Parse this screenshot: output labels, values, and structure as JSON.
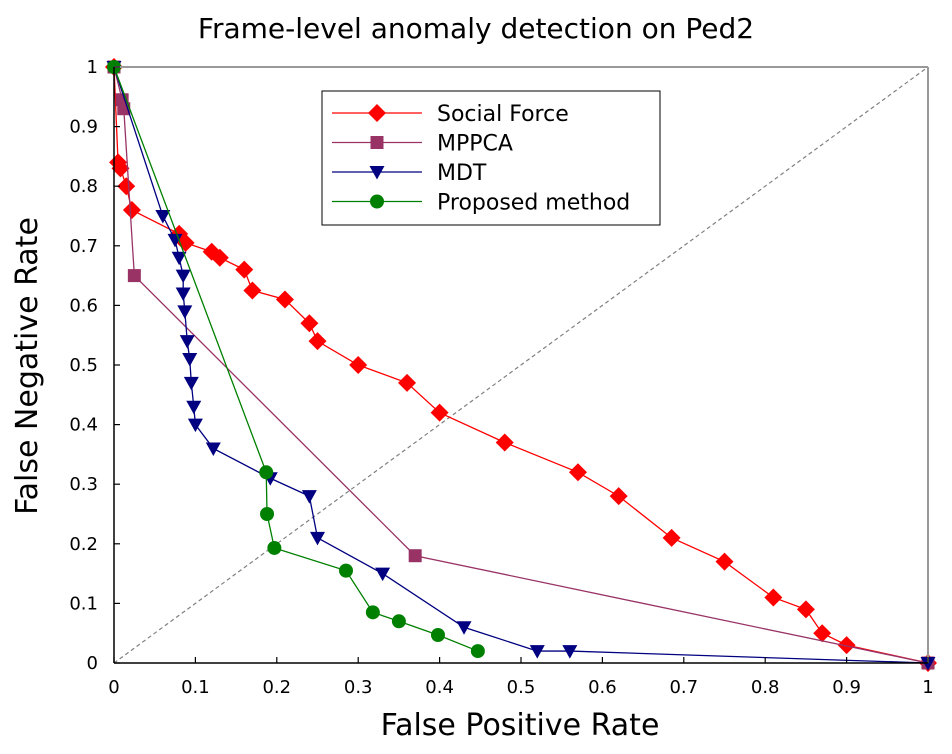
{
  "chart_data": {
    "type": "line",
    "title": "Frame-level anomaly detection on Ped2",
    "xlabel": "False Positive Rate",
    "ylabel": "False Negative Rate",
    "xlim": [
      0,
      1
    ],
    "ylim": [
      0,
      1
    ],
    "xticks": [
      "0",
      "0.1",
      "0.2",
      "0.3",
      "0.4",
      "0.5",
      "0.6",
      "0.7",
      "0.8",
      "0.9",
      "1"
    ],
    "yticks": [
      "0",
      "0.1",
      "0.2",
      "0.3",
      "0.4",
      "0.5",
      "0.6",
      "0.7",
      "0.8",
      "0.9",
      "1"
    ],
    "grid": false,
    "legend_position": "top-center",
    "series": [
      {
        "name": "Social Force",
        "color": "#ff0000",
        "marker": "diamond",
        "x": [
          0,
          0.005,
          0.008,
          0.015,
          0.022,
          0.08,
          0.088,
          0.12,
          0.13,
          0.16,
          0.17,
          0.21,
          0.24,
          0.25,
          0.3,
          0.36,
          0.4,
          0.48,
          0.57,
          0.62,
          0.685,
          0.75,
          0.81,
          0.85,
          0.87,
          0.9,
          1.0
        ],
        "y": [
          1.0,
          0.84,
          0.83,
          0.8,
          0.76,
          0.72,
          0.705,
          0.69,
          0.68,
          0.66,
          0.625,
          0.61,
          0.57,
          0.54,
          0.5,
          0.47,
          0.42,
          0.37,
          0.32,
          0.28,
          0.21,
          0.17,
          0.11,
          0.09,
          0.05,
          0.03,
          0.0
        ]
      },
      {
        "name": "MPPCA",
        "color": "#993366",
        "marker": "square",
        "x": [
          0,
          0.01,
          0.012,
          0.025,
          0.37,
          1.0
        ],
        "y": [
          1.0,
          0.945,
          0.93,
          0.65,
          0.18,
          0.0
        ]
      },
      {
        "name": "MDT",
        "color": "#000080",
        "marker": "triangle-down",
        "x": [
          0,
          0.06,
          0.075,
          0.08,
          0.085,
          0.085,
          0.087,
          0.09,
          0.093,
          0.095,
          0.098,
          0.1,
          0.122,
          0.192,
          0.24,
          0.25,
          0.33,
          0.43,
          0.52,
          0.56,
          1.0
        ],
        "y": [
          1.0,
          0.75,
          0.71,
          0.68,
          0.65,
          0.62,
          0.59,
          0.54,
          0.51,
          0.47,
          0.43,
          0.4,
          0.36,
          0.31,
          0.28,
          0.21,
          0.15,
          0.06,
          0.02,
          0.02,
          0.0
        ]
      },
      {
        "name": "Proposed method",
        "color": "#008000",
        "marker": "circle",
        "x": [
          0,
          0.187,
          0.188,
          0.197,
          0.285,
          0.318,
          0.35,
          0.398,
          0.447
        ],
        "y": [
          1.0,
          0.32,
          0.25,
          0.193,
          0.155,
          0.085,
          0.07,
          0.047,
          0.02
        ]
      }
    ],
    "reference_line": {
      "style": "dashed",
      "color": "#808080",
      "from": [
        0,
        0
      ],
      "to": [
        1,
        1
      ]
    }
  }
}
